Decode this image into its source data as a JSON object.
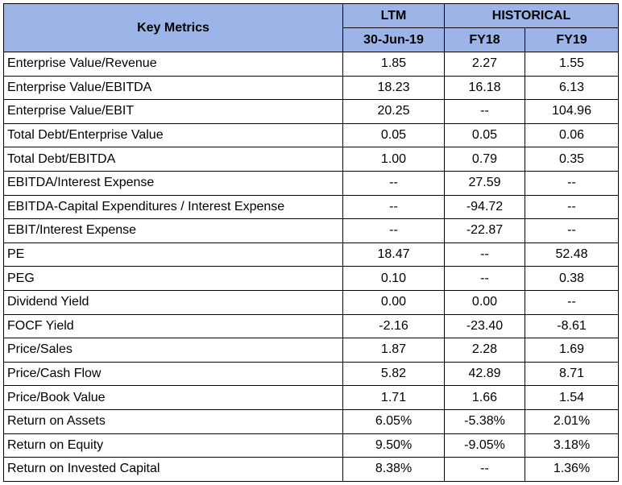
{
  "header": {
    "key_metrics": "Key Metrics",
    "ltm": "LTM",
    "historical": "HISTORICAL",
    "ltm_date": "30-Jun-19",
    "fy18": "FY18",
    "fy19": "FY19"
  },
  "rows": [
    {
      "label": "Enterprise Value/Revenue",
      "ltm": "1.85",
      "fy18": "2.27",
      "fy19": "1.55"
    },
    {
      "label": "Enterprise Value/EBITDA",
      "ltm": "18.23",
      "fy18": "16.18",
      "fy19": "6.13"
    },
    {
      "label": "Enterprise Value/EBIT",
      "ltm": "20.25",
      "fy18": "--",
      "fy19": "104.96"
    },
    {
      "label": "Total Debt/Enterprise Value",
      "ltm": "0.05",
      "fy18": "0.05",
      "fy19": "0.06"
    },
    {
      "label": "Total Debt/EBITDA",
      "ltm": "1.00",
      "fy18": "0.79",
      "fy19": "0.35"
    },
    {
      "label": "EBITDA/Interest Expense",
      "ltm": "--",
      "fy18": "27.59",
      "fy19": "--"
    },
    {
      "label": "EBITDA-Capital Expenditures / Interest Expense",
      "ltm": "--",
      "fy18": "-94.72",
      "fy19": "--"
    },
    {
      "label": "EBIT/Interest Expense",
      "ltm": "--",
      "fy18": "-22.87",
      "fy19": "--"
    },
    {
      "label": "PE",
      "ltm": "18.47",
      "fy18": "--",
      "fy19": "52.48"
    },
    {
      "label": "PEG",
      "ltm": "0.10",
      "fy18": "--",
      "fy19": "0.38"
    },
    {
      "label": "Dividend Yield",
      "ltm": "0.00",
      "fy18": "0.00",
      "fy19": "--"
    },
    {
      "label": "FOCF Yield",
      "ltm": "-2.16",
      "fy18": "-23.40",
      "fy19": "-8.61"
    },
    {
      "label": "Price/Sales",
      "ltm": "1.87",
      "fy18": "2.28",
      "fy19": "1.69"
    },
    {
      "label": "Price/Cash Flow",
      "ltm": "5.82",
      "fy18": "42.89",
      "fy19": "8.71"
    },
    {
      "label": "Price/Book Value",
      "ltm": "1.71",
      "fy18": "1.66",
      "fy19": "1.54"
    },
    {
      "label": "Return on Assets",
      "ltm": "6.05%",
      "fy18": "-5.38%",
      "fy19": "2.01%"
    },
    {
      "label": "Return on Equity",
      "ltm": "9.50%",
      "fy18": "-9.05%",
      "fy19": "3.18%"
    },
    {
      "label": "Return on Invested Capital",
      "ltm": "8.38%",
      "fy18": "--",
      "fy19": "1.36%"
    }
  ],
  "colors": {
    "header_bg": "#9db4e8",
    "border": "#000000"
  }
}
